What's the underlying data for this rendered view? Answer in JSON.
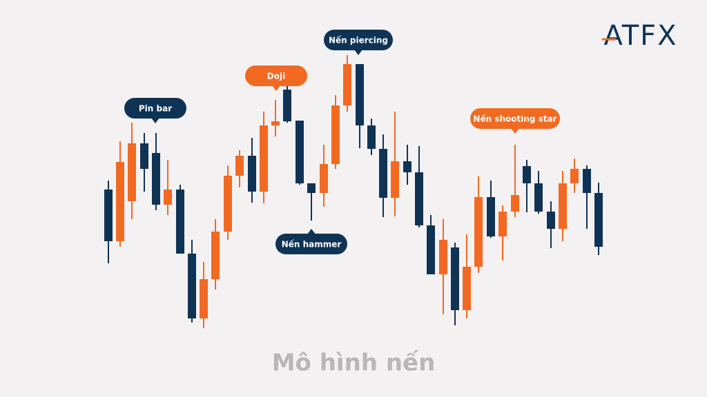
{
  "logo": "ATFX",
  "callouts": [
    "Pin bar",
    "Doji",
    "Nến piercing",
    "Nến hammer",
    "Nến shooting star"
  ],
  "caption": "Mô hình nến"
}
